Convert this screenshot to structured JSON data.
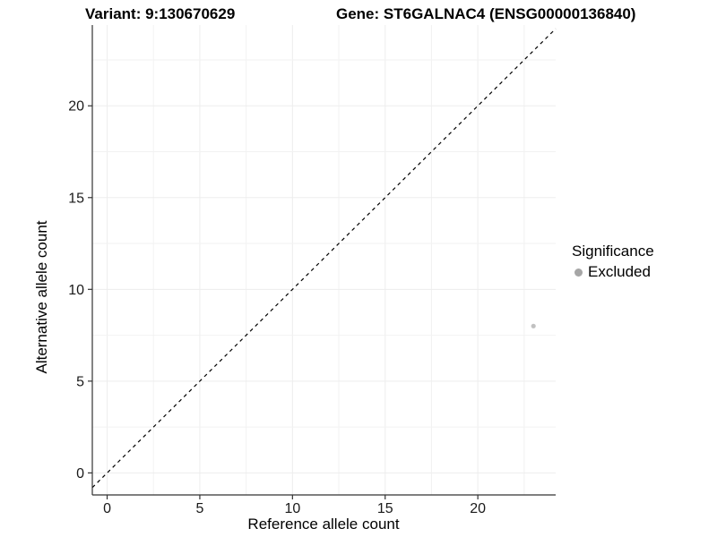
{
  "header": {
    "variant_title": "Variant: 9:130670629",
    "gene_title": "Gene: ST6GALNAC4 (ENSG00000136840)"
  },
  "chart_data": {
    "type": "scatter",
    "title_left": "Variant: 9:130670629",
    "title_right": "Gene: ST6GALNAC4 (ENSG00000136840)",
    "xlabel": "Reference allele count",
    "ylabel": "Alternative allele count",
    "x_ticks": [
      0,
      5,
      10,
      15,
      20
    ],
    "y_ticks": [
      0,
      5,
      10,
      15,
      20
    ],
    "xlim": [
      -0.8,
      24.2
    ],
    "ylim": [
      -1.2,
      24.4
    ],
    "minor_tick_step": 2.5,
    "grid": true,
    "identity_line": {
      "slope": 1,
      "intercept": 0,
      "linetype": "dashed",
      "color": "#000000"
    },
    "series": [
      {
        "name": "Excluded",
        "color": "#c1c1c1",
        "points": [
          {
            "x": 23,
            "y": 8
          }
        ]
      }
    ],
    "legend": {
      "title": "Significance",
      "position": "right",
      "items": [
        {
          "label": "Excluded",
          "color": "#a6a6a6"
        }
      ]
    },
    "colors": {
      "axis_line": "#333333",
      "grid_major": "#ededed",
      "grid_minor": "#f2f2f2",
      "tick": "#333333",
      "point": "#c1c1c1"
    }
  }
}
